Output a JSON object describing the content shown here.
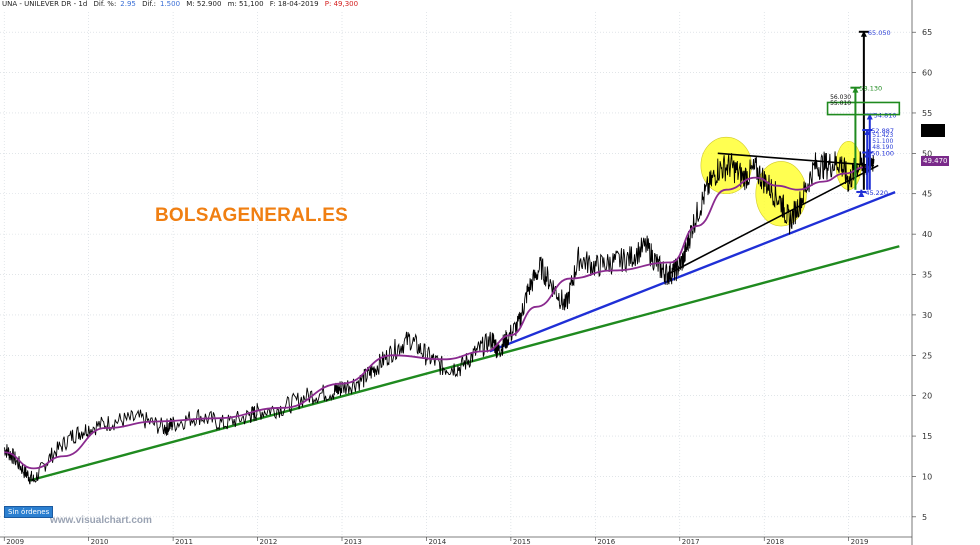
{
  "header": {
    "ticker": "UNA - UNILEVER DR - 1d",
    "dif_pct_label": "Dif. %:",
    "dif_pct": "2.95",
    "dif_label": "Dif.:",
    "dif": "1.500",
    "max": "M: 52.900",
    "min": "m: 51,100",
    "date": "F: 18-04-2019",
    "price": "P: 49,300"
  },
  "brand": "BOLSAGENERAL.ES",
  "watermark": "www.visualchart.com",
  "orders_label": "Sin órdenes",
  "price_tag": "49.470",
  "colors": {
    "price": "#000000",
    "moving_average": "#8a2a8f",
    "support_long": "#1f8a1f",
    "support_mid": "#1f2fd6",
    "support_short": "#000000",
    "highlight": "#ffff33",
    "target_green": "#1f8a1f",
    "target_black": "#000000",
    "target_blue": "#1f2fd6"
  },
  "chart_data": {
    "type": "line",
    "x_axis": {
      "labels": [
        "2009",
        "2010",
        "2011",
        "2012",
        "2013",
        "2014",
        "2015",
        "2016",
        "2017",
        "2018",
        "2019"
      ],
      "range": [
        "2009-01",
        "2019-09"
      ]
    },
    "y_axis": {
      "ticks": [
        5,
        10,
        15,
        20,
        25,
        30,
        35,
        40,
        45,
        50,
        55,
        60,
        65
      ],
      "range": [
        3,
        67.5
      ],
      "side": "right"
    },
    "series": [
      {
        "role": "price",
        "x": [
          2009.0,
          2009.1,
          2009.25,
          2009.35,
          2009.55,
          2009.8,
          2010.0,
          2010.3,
          2010.6,
          2010.9,
          2011.0,
          2011.3,
          2011.6,
          2011.9,
          2012.0,
          2012.3,
          2012.6,
          2012.9,
          2013.0,
          2013.25,
          2013.4,
          2013.6,
          2013.8,
          2014.0,
          2014.2,
          2014.4,
          2014.6,
          2014.78,
          2014.85,
          2014.95,
          2015.1,
          2015.2,
          2015.35,
          2015.5,
          2015.65,
          2015.8,
          2016.0,
          2016.2,
          2016.4,
          2016.6,
          2016.75,
          2016.85,
          2016.95,
          2017.05,
          2017.15,
          2017.3,
          2017.45,
          2017.6,
          2017.75,
          2017.9,
          2018.05,
          2018.2,
          2018.3,
          2018.45,
          2018.6,
          2018.75,
          2018.9,
          2019.0,
          2019.1,
          2019.2,
          2019.3
        ],
        "y": [
          13.5,
          12.5,
          10.5,
          9.5,
          12.5,
          15,
          16,
          16.8,
          17.2,
          16,
          16.5,
          17.5,
          16.5,
          17.5,
          18,
          18.5,
          20,
          20.5,
          21,
          22,
          23.5,
          25.5,
          27,
          25,
          23.5,
          23.5,
          25.5,
          27,
          25.5,
          27,
          29,
          33,
          36,
          33.5,
          31,
          37,
          36,
          36.5,
          37,
          38.5,
          36,
          35,
          35.5,
          37,
          41,
          45,
          48,
          48.5,
          47,
          48,
          46,
          44,
          41.5,
          44.5,
          48.5,
          48.5,
          49,
          46.5,
          48.5,
          48.5,
          49.3
        ]
      },
      {
        "role": "moving_average",
        "x": [
          2009.0,
          2009.35,
          2009.7,
          2010.2,
          2010.8,
          2011.5,
          2012.3,
          2013.0,
          2013.6,
          2014.2,
          2014.7,
          2015.0,
          2015.3,
          2015.7,
          2016.2,
          2016.9,
          2017.2,
          2017.55,
          2017.9,
          2018.15,
          2018.4,
          2018.7,
          2018.95,
          2019.2
        ],
        "y": [
          13,
          11,
          12.5,
          16,
          16.8,
          17.2,
          18.5,
          21.5,
          25,
          24.5,
          25.5,
          27.5,
          31,
          34.5,
          35.5,
          36.5,
          41,
          45.5,
          47,
          46,
          45.5,
          46.5,
          47.5,
          48.3
        ]
      }
    ],
    "trendlines": [
      {
        "role": "support_long",
        "from": [
          2009.3,
          9.5
        ],
        "to": [
          2019.6,
          38.5
        ]
      },
      {
        "role": "support_mid",
        "from": [
          2014.75,
          25.5
        ],
        "to": [
          2019.55,
          45.2
        ]
      },
      {
        "role": "support_short",
        "from": [
          2016.85,
          35
        ],
        "to": [
          2019.35,
          48.5
        ]
      },
      {
        "role": "resistance",
        "from": [
          2017.45,
          50
        ],
        "to": [
          2019.3,
          48.5
        ]
      }
    ],
    "highlights": [
      {
        "center": [
          2017.55,
          48.5
        ],
        "rx_years": 0.3,
        "ry_value": 3.5
      },
      {
        "center": [
          2018.2,
          45
        ],
        "rx_years": 0.3,
        "ry_value": 4
      },
      {
        "center": [
          2019.0,
          48.5
        ],
        "rx_years": 0.15,
        "ry_value": 3
      }
    ],
    "target_labels": [
      "65.050",
      "58.130",
      "56.030",
      "55.010",
      "54.810",
      "52.887",
      "51.423",
      "51.100",
      "50.100",
      "49.470",
      "48.190",
      "45.220"
    ],
    "targets": [
      {
        "role": "target_black",
        "x": 2019.18,
        "y": 65.05,
        "label": "65.050"
      },
      {
        "role": "target_green",
        "x": 2019.08,
        "y": 58.13,
        "label": "58.130"
      },
      {
        "role": "target_blue",
        "x": 2019.25,
        "y": 54.81,
        "label": "54.810"
      },
      {
        "role": "target_blue",
        "x": 2019.22,
        "y": 52.887,
        "label": "52.887"
      },
      {
        "role": "target_blue",
        "x": 2019.22,
        "y": 50.1,
        "label": "50.100"
      },
      {
        "role": "target_blue",
        "x": 2019.15,
        "y": 45.22,
        "label": "45.220"
      }
    ]
  }
}
